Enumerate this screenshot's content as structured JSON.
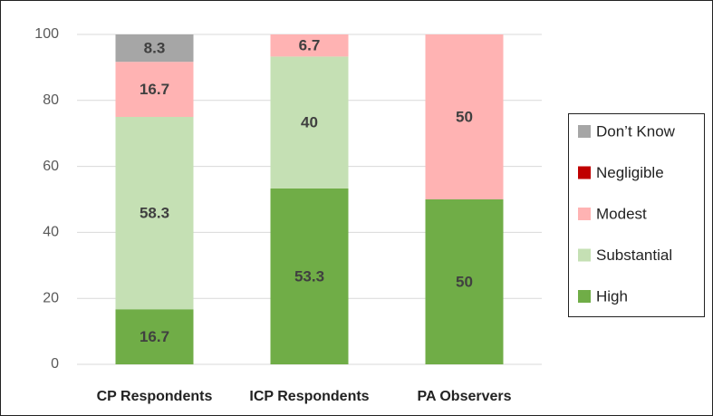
{
  "chart_data": {
    "type": "stacked_bar",
    "categories": [
      "CP Respondents",
      "ICP Respondents",
      "PA Observers"
    ],
    "series": [
      {
        "name": "High",
        "color": "#70ad47",
        "values": [
          16.7,
          53.3,
          50
        ]
      },
      {
        "name": "Substantial",
        "color": "#c5e0b4",
        "values": [
          58.3,
          40,
          0
        ]
      },
      {
        "name": "Modest",
        "color": "#ffb3b3",
        "values": [
          16.7,
          6.7,
          50
        ]
      },
      {
        "name": "Negligible",
        "color": "#c00000",
        "values": [
          0,
          0,
          0
        ]
      },
      {
        "name": "Don’t Know",
        "color": "#a6a6a6",
        "values": [
          8.3,
          0,
          0
        ]
      }
    ],
    "ylim": [
      0,
      100
    ],
    "yticks": [
      0,
      20,
      40,
      60,
      80,
      100
    ],
    "grid": true,
    "legend": "right"
  }
}
